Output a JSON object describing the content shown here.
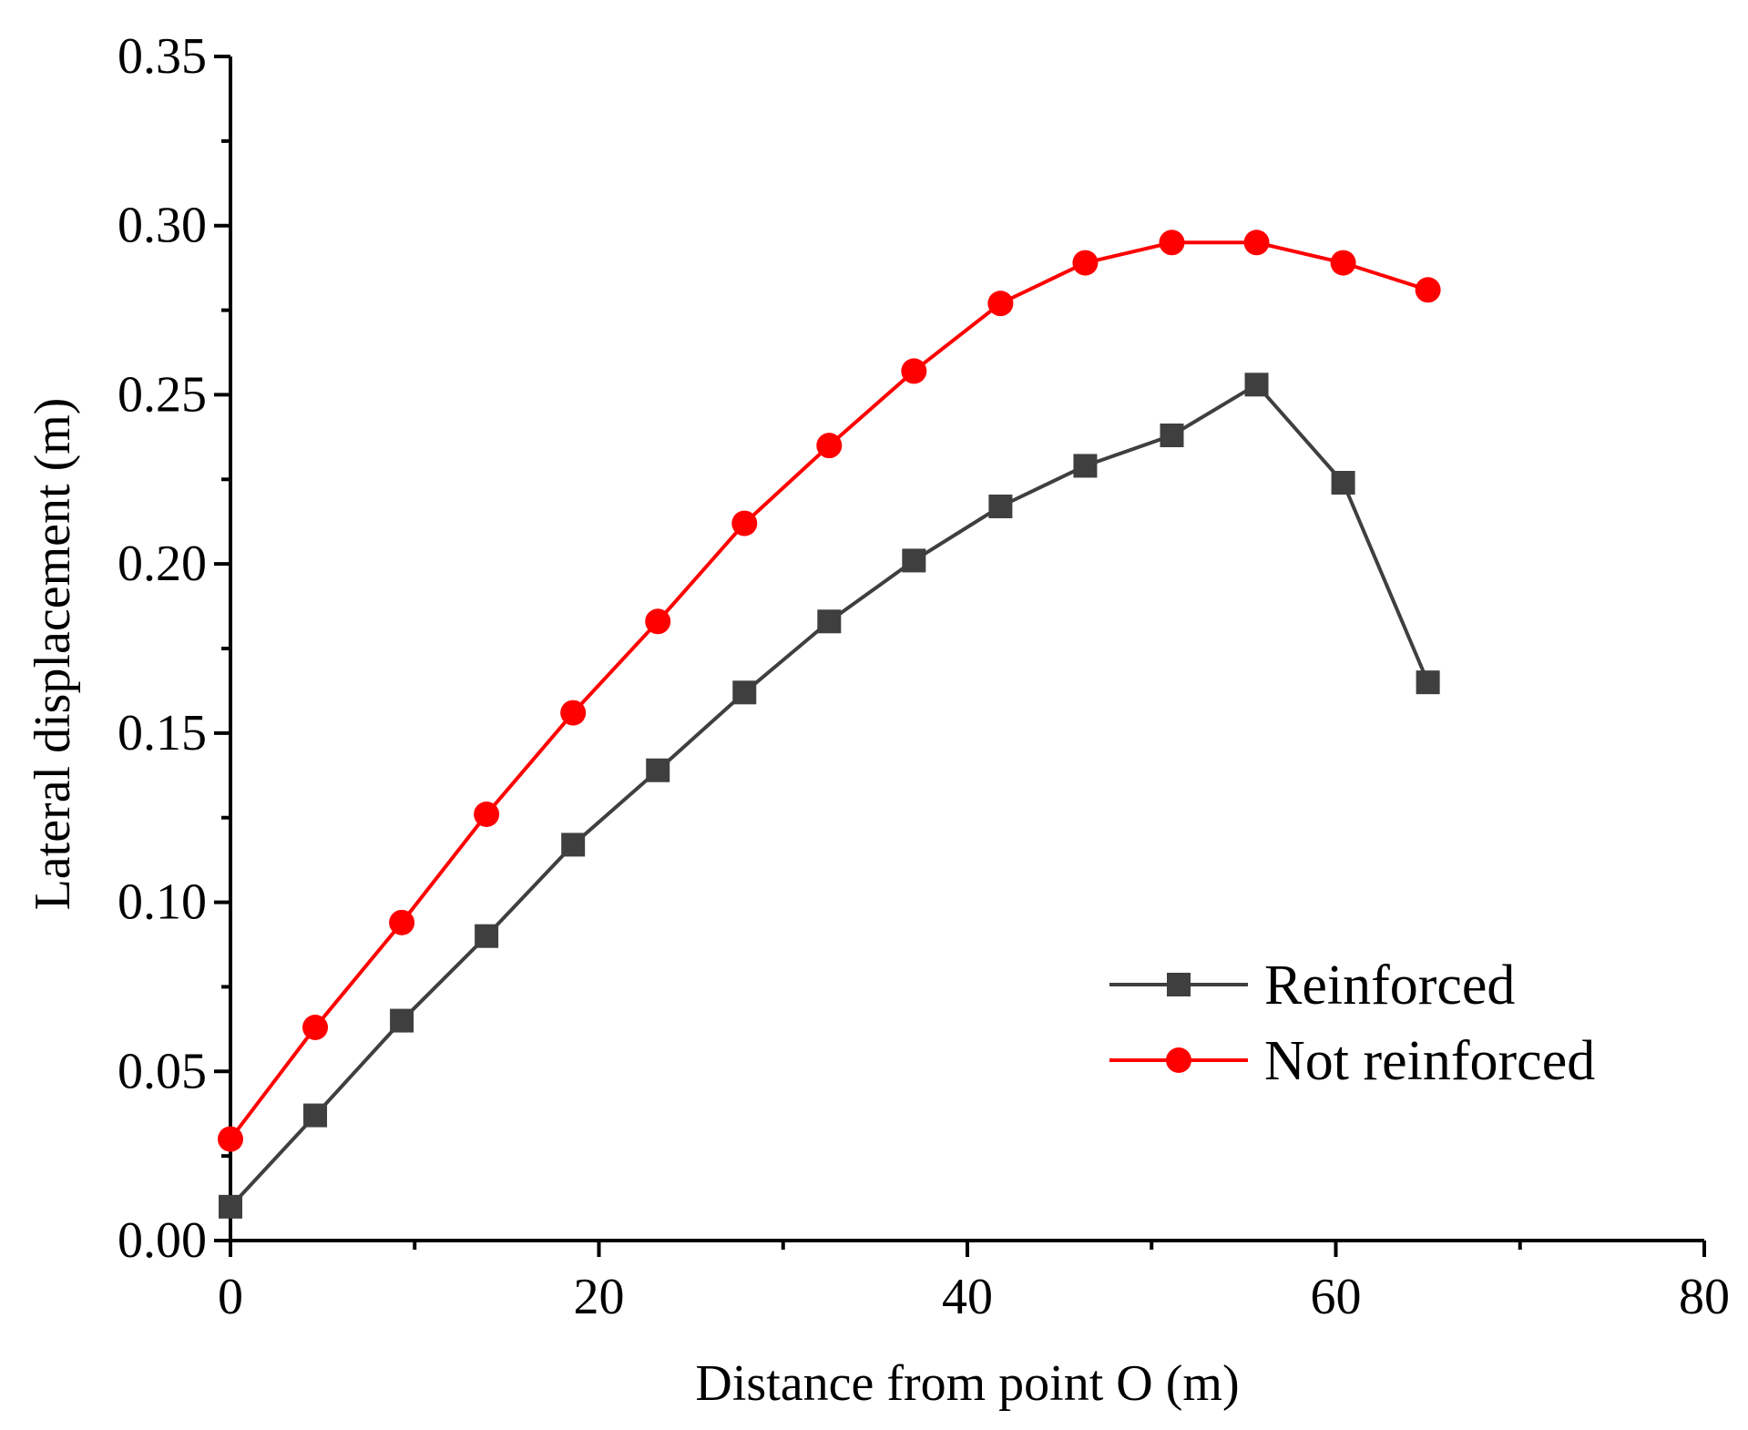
{
  "chart_data": {
    "type": "line",
    "title": "",
    "xlabel": "Distance from point O (m)",
    "ylabel": "Lateral displacement (m)",
    "xlim": [
      0,
      80
    ],
    "ylim": [
      0,
      0.35
    ],
    "x_ticks": [
      "0",
      "20",
      "40",
      "60",
      "80"
    ],
    "y_ticks": [
      "0.00",
      "0.05",
      "0.10",
      "0.15",
      "0.20",
      "0.25",
      "0.30",
      "0.35"
    ],
    "grid": false,
    "legend_position": "bottom-right",
    "series": [
      {
        "name": "Reinforced",
        "marker": "square",
        "color": "#3f3f3f",
        "x": [
          0,
          4.6,
          9.3,
          13.9,
          18.6,
          23.2,
          27.9,
          32.5,
          37.1,
          41.8,
          46.4,
          51.1,
          55.7,
          60.4,
          65.0
        ],
        "y": [
          0.01,
          0.037,
          0.065,
          0.09,
          0.117,
          0.139,
          0.162,
          0.183,
          0.201,
          0.217,
          0.229,
          0.238,
          0.253,
          0.224,
          0.165
        ]
      },
      {
        "name": "Not reinforced",
        "marker": "circle",
        "color": "#ff0000",
        "x": [
          0,
          4.6,
          9.3,
          13.9,
          18.6,
          23.2,
          27.9,
          32.5,
          37.1,
          41.8,
          46.4,
          51.1,
          55.7,
          60.4,
          65.0
        ],
        "y": [
          0.03,
          0.063,
          0.094,
          0.126,
          0.156,
          0.183,
          0.212,
          0.235,
          0.257,
          0.277,
          0.289,
          0.295,
          0.295,
          0.289,
          0.281
        ]
      }
    ]
  }
}
